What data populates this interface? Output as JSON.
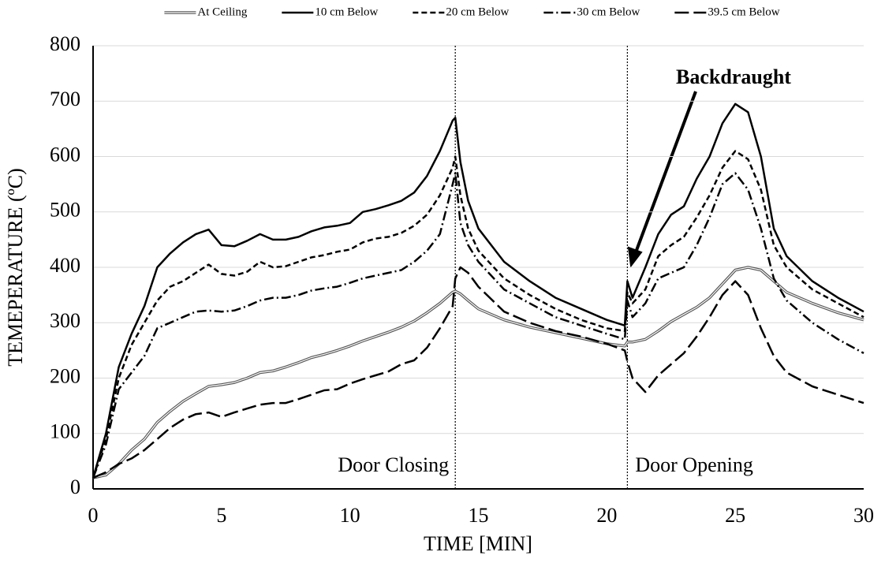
{
  "chart_data": {
    "type": "line",
    "x_label": "TIME [MIN]",
    "y_label": "TEMEPERATURE (ºC)",
    "xlim": [
      0,
      30
    ],
    "xticks": [
      0,
      5,
      10,
      15,
      20,
      25,
      30
    ],
    "ylim": [
      0,
      800
    ],
    "yticks": [
      0,
      100,
      200,
      300,
      400,
      500,
      600,
      700,
      800
    ],
    "grid": true,
    "legend": "top",
    "markers": [
      {
        "x": 14.1,
        "label": "Door Closing"
      },
      {
        "x": 20.8,
        "label": "Door Opening"
      }
    ],
    "annotation": "Backdraught",
    "x": [
      0,
      0.5,
      1,
      1.5,
      2,
      2.5,
      3,
      3.5,
      4,
      4.5,
      5,
      5.5,
      6,
      6.5,
      7,
      7.5,
      8,
      8.5,
      9,
      9.5,
      10,
      10.5,
      11,
      11.5,
      12,
      12.5,
      13,
      13.5,
      14,
      14.1,
      14.3,
      14.6,
      15,
      16,
      17,
      18,
      19,
      20,
      20.7,
      20.8,
      21,
      21.5,
      22,
      22.5,
      23,
      23.5,
      24,
      24.5,
      25,
      25.5,
      26,
      26.5,
      27,
      28,
      29,
      30
    ],
    "series": [
      {
        "name": "At Ceiling",
        "color": "#555555",
        "style": "double",
        "values": [
          20,
          25,
          45,
          70,
          90,
          120,
          140,
          158,
          172,
          185,
          188,
          192,
          200,
          210,
          213,
          220,
          228,
          237,
          243,
          250,
          258,
          267,
          275,
          283,
          292,
          303,
          318,
          335,
          355,
          357,
          352,
          340,
          325,
          305,
          292,
          282,
          272,
          262,
          258,
          265,
          265,
          270,
          285,
          302,
          315,
          328,
          345,
          370,
          395,
          400,
          395,
          375,
          355,
          335,
          318,
          305
        ]
      },
      {
        "name": "10 cm Below",
        "color": "#000000",
        "style": "solid",
        "values": [
          20,
          100,
          220,
          280,
          330,
          400,
          425,
          445,
          460,
          468,
          440,
          438,
          448,
          460,
          450,
          450,
          455,
          465,
          472,
          475,
          480,
          500,
          505,
          512,
          520,
          535,
          565,
          610,
          665,
          670,
          590,
          520,
          470,
          410,
          375,
          345,
          325,
          305,
          295,
          375,
          345,
          400,
          460,
          495,
          510,
          560,
          600,
          660,
          695,
          680,
          600,
          470,
          420,
          375,
          345,
          320
        ]
      },
      {
        "name": "20 cm Below",
        "color": "#000000",
        "style": "dashed",
        "values": [
          20,
          90,
          200,
          260,
          300,
          340,
          365,
          375,
          390,
          405,
          388,
          385,
          392,
          410,
          400,
          402,
          410,
          418,
          422,
          428,
          432,
          445,
          452,
          455,
          462,
          475,
          495,
          530,
          580,
          600,
          530,
          470,
          430,
          380,
          350,
          325,
          305,
          290,
          285,
          355,
          335,
          360,
          420,
          440,
          455,
          490,
          530,
          580,
          610,
          595,
          540,
          440,
          400,
          360,
          335,
          310
        ]
      },
      {
        "name": "30 cm Below",
        "color": "#000000",
        "style": "dashdot",
        "values": [
          20,
          80,
          180,
          210,
          240,
          290,
          300,
          310,
          320,
          322,
          320,
          322,
          330,
          340,
          345,
          345,
          350,
          358,
          362,
          365,
          372,
          380,
          385,
          390,
          395,
          410,
          430,
          460,
          550,
          570,
          480,
          440,
          410,
          360,
          335,
          310,
          295,
          280,
          270,
          340,
          310,
          335,
          380,
          390,
          400,
          440,
          490,
          550,
          570,
          540,
          470,
          380,
          340,
          300,
          270,
          245
        ]
      },
      {
        "name": "39.5 cm Below",
        "color": "#000000",
        "style": "longdash",
        "values": [
          20,
          30,
          45,
          55,
          70,
          90,
          110,
          125,
          135,
          138,
          130,
          138,
          145,
          152,
          155,
          155,
          162,
          170,
          178,
          180,
          190,
          198,
          205,
          212,
          225,
          232,
          255,
          290,
          330,
          380,
          400,
          390,
          365,
          320,
          300,
          285,
          275,
          262,
          250,
          230,
          200,
          175,
          205,
          225,
          245,
          275,
          310,
          350,
          375,
          350,
          290,
          240,
          210,
          185,
          170,
          155
        ]
      }
    ]
  }
}
